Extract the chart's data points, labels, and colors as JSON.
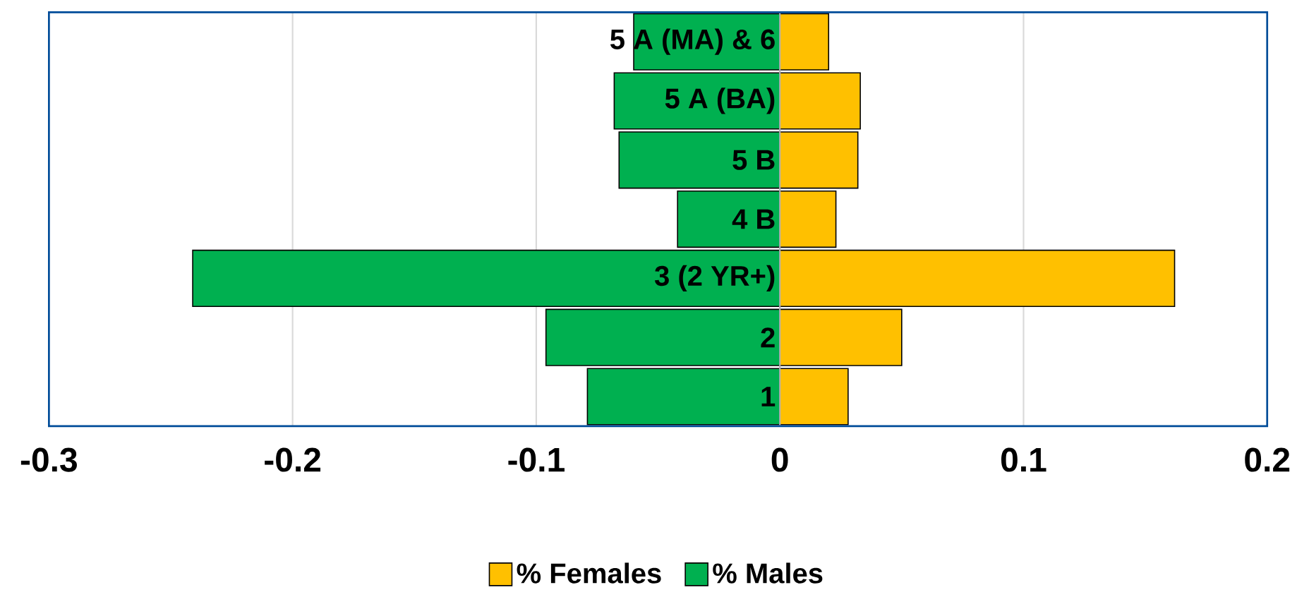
{
  "chart_data": {
    "type": "bar",
    "orientation": "horizontal",
    "stacked": true,
    "categories": [
      "5 A (MA) & 6",
      "5 A (BA)",
      "5 B",
      "4 B",
      "3 (2 YR+)",
      "2",
      "1"
    ],
    "series": [
      {
        "name": "% Females",
        "color": "#ffc000",
        "values": [
          0.02,
          0.033,
          0.032,
          0.023,
          0.162,
          0.05,
          0.028
        ]
      },
      {
        "name": "% Males",
        "color": "#00b050",
        "values": [
          -0.06,
          -0.068,
          -0.066,
          -0.042,
          -0.241,
          -0.096,
          -0.079
        ]
      }
    ],
    "xlim": [
      -0.3,
      0.2
    ],
    "xticks": [
      -0.3,
      -0.2,
      -0.1,
      0,
      0.1,
      0.2
    ],
    "grid": "x",
    "legend": "bottom"
  }
}
